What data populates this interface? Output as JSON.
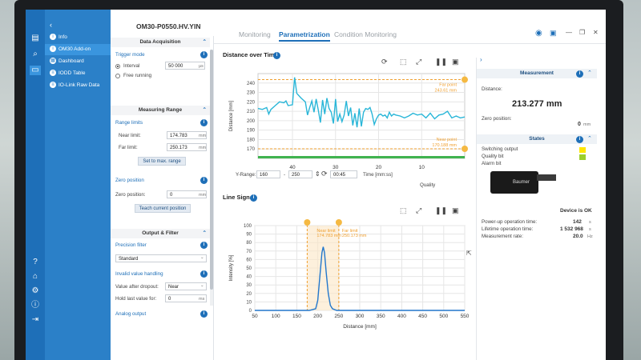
{
  "window": {
    "device_title": "OM30-P0550.HV.YIN"
  },
  "tabs": [
    {
      "label": "Monitoring"
    },
    {
      "label": "Parametrization"
    },
    {
      "label": "Condition Monitoring"
    }
  ],
  "menu": {
    "items": [
      {
        "label": "Info"
      },
      {
        "label": "OM30 Add-on"
      },
      {
        "label": "Dashboard"
      },
      {
        "label": "IODD Table"
      },
      {
        "label": "IO-Link Raw Data"
      }
    ]
  },
  "settings": {
    "data_acquisition": {
      "header": "Data Acquisition",
      "trigger_mode_label": "Trigger mode",
      "interval_label": "Interval",
      "interval_value": "50 000",
      "interval_unit": "µs",
      "free_running_label": "Free running"
    },
    "measuring_range": {
      "header": "Measuring Range",
      "range_limits_label": "Range limits",
      "near_limit_label": "Near limit:",
      "near_limit_value": "174.783",
      "near_limit_unit": "mm",
      "far_limit_label": "Far limit:",
      "far_limit_value": "250.173",
      "far_limit_unit": "mm",
      "set_max_button": "Set to max. range",
      "zero_position_label": "Zero position",
      "zero_position_field_label": "Zero position:",
      "zero_position_value": "0",
      "zero_position_unit": "mm",
      "teach_button": "Teach current position"
    },
    "output_filter": {
      "header": "Output & Filter",
      "precision_filter_label": "Precision filter",
      "precision_filter_value": "Standard",
      "invalid_value_label": "Invalid value handling",
      "after_dropout_label": "Value after dropout:",
      "after_dropout_value": "Near",
      "hold_last_label": "Hold last value for:",
      "hold_last_value": "0",
      "hold_last_unit": "ms",
      "analog_output_label": "Analog output"
    }
  },
  "distance_chart": {
    "title": "Distance over Time",
    "ylabel": "Distance [mm]",
    "yrange_label": "Y-Range:",
    "yrange_min": "160",
    "yrange_max": "250",
    "time_value": "00:45",
    "time_label": "Time [mm:ss]",
    "quality_label": "Quality",
    "far_point_label": "Far point",
    "far_point_value": "243.61 mm",
    "near_point_label": "Near point",
    "near_point_value": "170.188 mm"
  },
  "line_chart": {
    "title": "Line Signal",
    "near_limit_label": "Near limit",
    "near_limit_value": "174.783 mm",
    "far_limit_label": "Far limit",
    "far_limit_value": "250.173 mm"
  },
  "right_panel": {
    "measurement_header": "Measurement",
    "distance_label": "Distance:",
    "distance_value": "213.277 mm",
    "zero_position_label": "Zero position:",
    "zero_position_value": "0",
    "zero_position_unit": "mm",
    "states_header": "States",
    "states": [
      {
        "label": "Switching output",
        "color": "#ffe600"
      },
      {
        "label": "Quality bit",
        "color": "#9ccf2c"
      },
      {
        "label": "Alarm bit",
        "color": ""
      }
    ],
    "device_status": "Device is OK",
    "stats": [
      {
        "label": "Power-up operation time:",
        "value": "142",
        "unit": "s"
      },
      {
        "label": "Lifetime operation time:",
        "value": "1 532 968",
        "unit": "s"
      },
      {
        "label": "Measurement rate:",
        "value": "20.0",
        "unit": "Hz"
      }
    ]
  },
  "sensor": {
    "brand": "Baumer"
  },
  "chart_data": [
    {
      "type": "line",
      "title": "Distance over Time",
      "xlabel": "Time [mm:ss]",
      "ylabel": "Distance [mm]",
      "ylim": [
        160,
        250
      ],
      "yticks": [
        170,
        180,
        190,
        200,
        210,
        220,
        230,
        240
      ],
      "xticks": [
        40,
        30,
        20,
        10
      ],
      "xlim": [
        48,
        0
      ],
      "grid": true,
      "series": [
        {
          "x": [
            48,
            47,
            46,
            45.5,
            45,
            44,
            43,
            42,
            41.5,
            41,
            40,
            39.5,
            39,
            38,
            37,
            36.5,
            36,
            35.5,
            35,
            34.5,
            34,
            33.5,
            33,
            32.5,
            32,
            31.5,
            31,
            30.5,
            30,
            29.5,
            29,
            28.5,
            28,
            27.5,
            27,
            26.5,
            26,
            25.5,
            25,
            24.5,
            24,
            23.5,
            23,
            22.5,
            22,
            21.5,
            21,
            20.5,
            20,
            19.5,
            19,
            18.5,
            18,
            17.5,
            17,
            16.5,
            16,
            15,
            14,
            13,
            12,
            11,
            10,
            9,
            8,
            7,
            6,
            5,
            4,
            3,
            2,
            1,
            0
          ],
          "y": [
            213,
            212,
            214,
            207,
            212,
            216,
            220,
            219,
            221,
            216,
            217,
            246,
            229,
            224,
            220,
            206,
            214,
            221,
            209,
            223,
            211,
            198,
            222,
            207,
            224,
            213,
            209,
            197,
            223,
            199,
            207,
            199,
            206,
            221,
            205,
            214,
            195,
            208,
            193,
            213,
            194,
            209,
            213,
            212,
            214,
            207,
            196,
            202,
            206,
            207,
            205,
            206,
            203,
            209,
            205,
            207,
            206,
            205,
            203,
            205,
            208,
            206,
            207,
            203,
            208,
            202,
            206,
            207,
            210,
            203,
            205,
            203,
            204
          ]
        }
      ],
      "annotations": [
        {
          "label": "Far point",
          "value": 243.61
        },
        {
          "label": "Near point",
          "value": 170.188
        }
      ]
    },
    {
      "type": "line",
      "title": "Line Signal",
      "xlabel": "Distance [mm]",
      "ylabel": "Intensity [%]",
      "xlim": [
        50,
        550
      ],
      "ylim": [
        0,
        100
      ],
      "xticks": [
        50,
        100,
        150,
        200,
        250,
        300,
        350,
        400,
        450,
        500,
        550
      ],
      "yticks": [
        0,
        10,
        20,
        30,
        40,
        50,
        60,
        70,
        80,
        90,
        100
      ],
      "grid": true,
      "series": [
        {
          "x": [
            50,
            150,
            180,
            195,
            200,
            205,
            210,
            213,
            216,
            220,
            225,
            230,
            235,
            245,
            260,
            350,
            550
          ],
          "y": [
            0,
            0,
            0,
            2,
            12,
            40,
            68,
            75,
            68,
            45,
            20,
            6,
            2,
            0,
            0,
            0,
            0
          ]
        }
      ],
      "annotations": [
        {
          "label": "Near limit",
          "value": 174.783
        },
        {
          "label": "Far limit",
          "value": 250.173
        }
      ]
    }
  ]
}
